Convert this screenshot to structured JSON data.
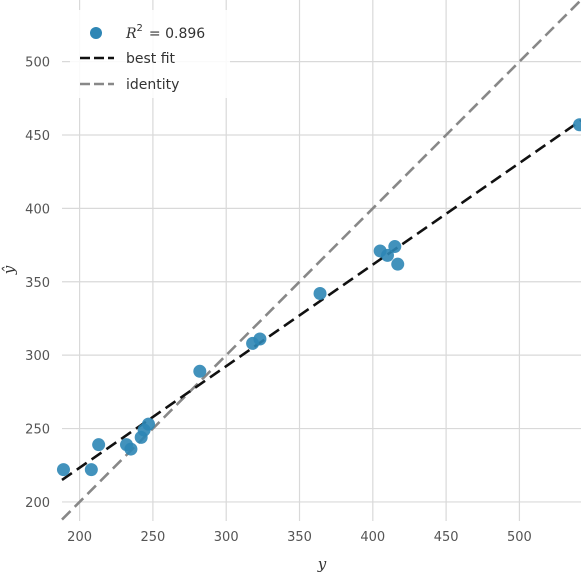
{
  "chart_data": {
    "type": "scatter",
    "xlabel": "y",
    "ylabel": "ŷ",
    "xlim": [
      188,
      542
    ],
    "ylim": [
      187,
      542
    ],
    "xticks": [
      200,
      250,
      300,
      350,
      400,
      450,
      500
    ],
    "yticks": [
      200,
      250,
      300,
      350,
      400,
      450,
      500
    ],
    "grid": true,
    "legend_position": "top-left",
    "points": [
      {
        "x": 189,
        "y": 222
      },
      {
        "x": 208,
        "y": 222
      },
      {
        "x": 213,
        "y": 239
      },
      {
        "x": 232,
        "y": 239
      },
      {
        "x": 235,
        "y": 236
      },
      {
        "x": 242,
        "y": 244
      },
      {
        "x": 244,
        "y": 249
      },
      {
        "x": 247,
        "y": 253
      },
      {
        "x": 282,
        "y": 289
      },
      {
        "x": 318,
        "y": 308
      },
      {
        "x": 323,
        "y": 311
      },
      {
        "x": 364,
        "y": 342
      },
      {
        "x": 405,
        "y": 371
      },
      {
        "x": 410,
        "y": 368
      },
      {
        "x": 415,
        "y": 374
      },
      {
        "x": 417,
        "y": 362
      },
      {
        "x": 541,
        "y": 457
      }
    ],
    "series": [
      {
        "name": "best fit",
        "kind": "line",
        "style": "dashed",
        "color": "#111111",
        "x": [
          188,
          542
        ],
        "y": [
          215,
          460
        ]
      },
      {
        "name": "identity",
        "kind": "line",
        "style": "dashed",
        "color": "#888888",
        "x": [
          188,
          542
        ],
        "y": [
          188,
          542
        ]
      }
    ],
    "legend": {
      "r2_label": "R",
      "r2_sup": "2",
      "r2_value": "= 0.896",
      "best_fit": "best fit",
      "identity": "identity"
    },
    "colors": {
      "points": "#2e86b5",
      "grid": "#d9d9d9",
      "best_fit": "#111111",
      "identity": "#888888"
    }
  }
}
